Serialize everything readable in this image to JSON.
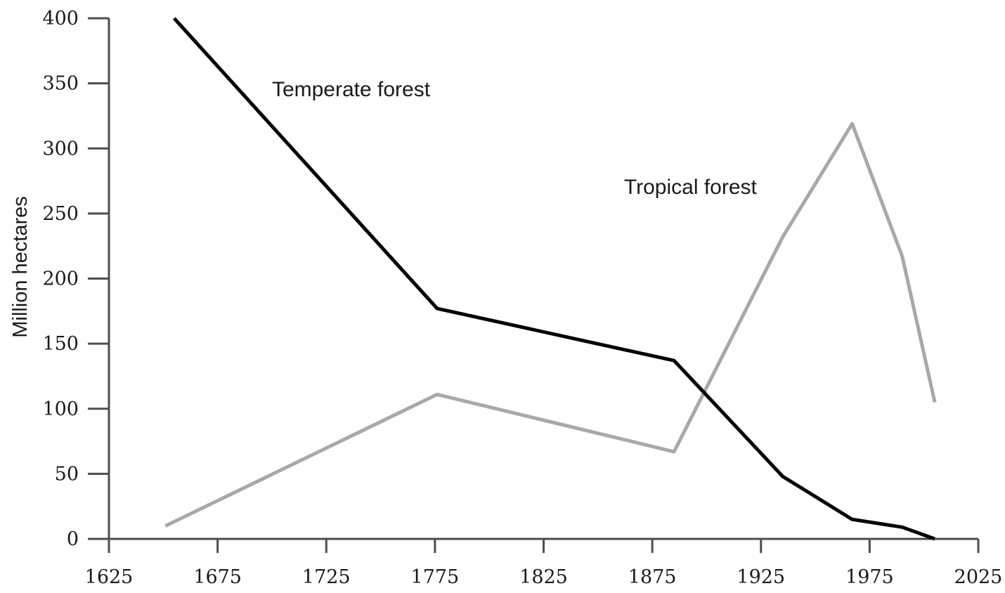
{
  "chart_data": {
    "type": "line",
    "xlim": [
      1625,
      2025
    ],
    "ylim": [
      0,
      400
    ],
    "x_ticks": [
      "1625",
      "1675",
      "1725",
      "1775",
      "1825",
      "1875",
      "1925",
      "1975",
      "2025"
    ],
    "y_ticks": [
      "0",
      "50",
      "100",
      "150",
      "200",
      "250",
      "300",
      "350",
      "400"
    ],
    "ylabel": "Million hectares",
    "xlabel": "",
    "title": "",
    "grid": false,
    "legend": "none (series labelled directly on chart)",
    "series": [
      {
        "name": "Temperate forest",
        "color": "#000000",
        "points": [
          [
            1655,
            400
          ],
          [
            1776,
            177
          ],
          [
            1885,
            137
          ],
          [
            1935,
            48
          ],
          [
            1967,
            15
          ],
          [
            1990,
            9
          ],
          [
            2005,
            0
          ]
        ]
      },
      {
        "name": "Tropical forest",
        "color": "#a7a8ab",
        "points": [
          [
            1651,
            10
          ],
          [
            1776,
            111
          ],
          [
            1885,
            67
          ],
          [
            1935,
            232
          ],
          [
            1967,
            319
          ],
          [
            1990,
            217
          ],
          [
            2005,
            105
          ]
        ]
      }
    ]
  },
  "colors": {
    "axis": "#4d4d4d",
    "text": "#1a1a1a"
  }
}
